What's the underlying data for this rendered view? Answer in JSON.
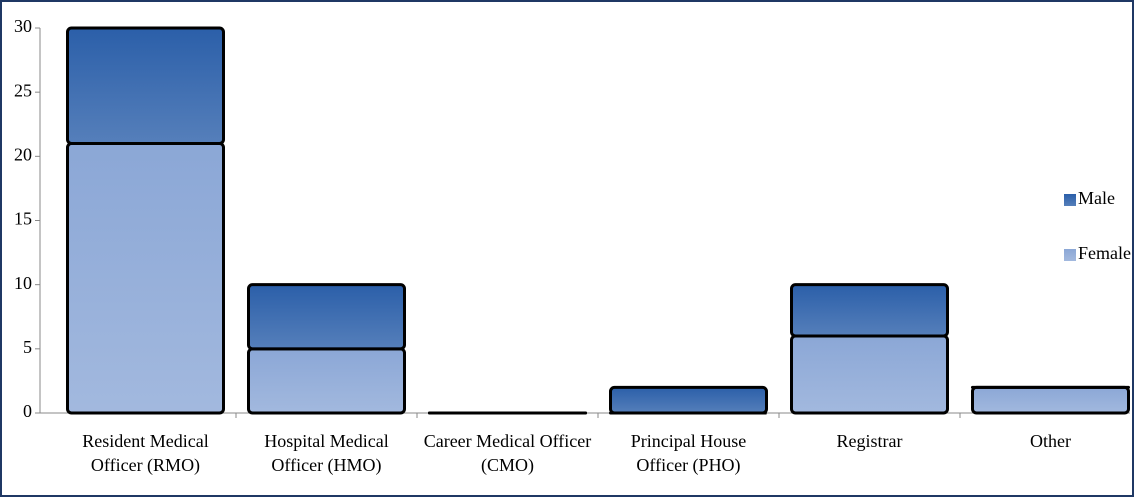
{
  "chart_data": {
    "type": "stacked-bar",
    "categories": [
      "Resident Medical Officer (RMO)",
      "Hospital Medical Officer (HMO)",
      "Career Medical Officer (CMO)",
      "Principal House Officer (PHO)",
      "Registrar",
      "Other"
    ],
    "series": [
      {
        "name": "Female",
        "color": "#8ba7d6",
        "values": [
          21,
          5,
          0,
          0,
          6,
          2
        ]
      },
      {
        "name": "Male",
        "color": "#2b5fa9",
        "values": [
          9,
          5,
          0,
          2,
          4,
          0
        ]
      }
    ],
    "ylim": [
      0,
      30
    ],
    "yticks": [
      0,
      5,
      10,
      15,
      20,
      25,
      30
    ],
    "legend": "right"
  }
}
